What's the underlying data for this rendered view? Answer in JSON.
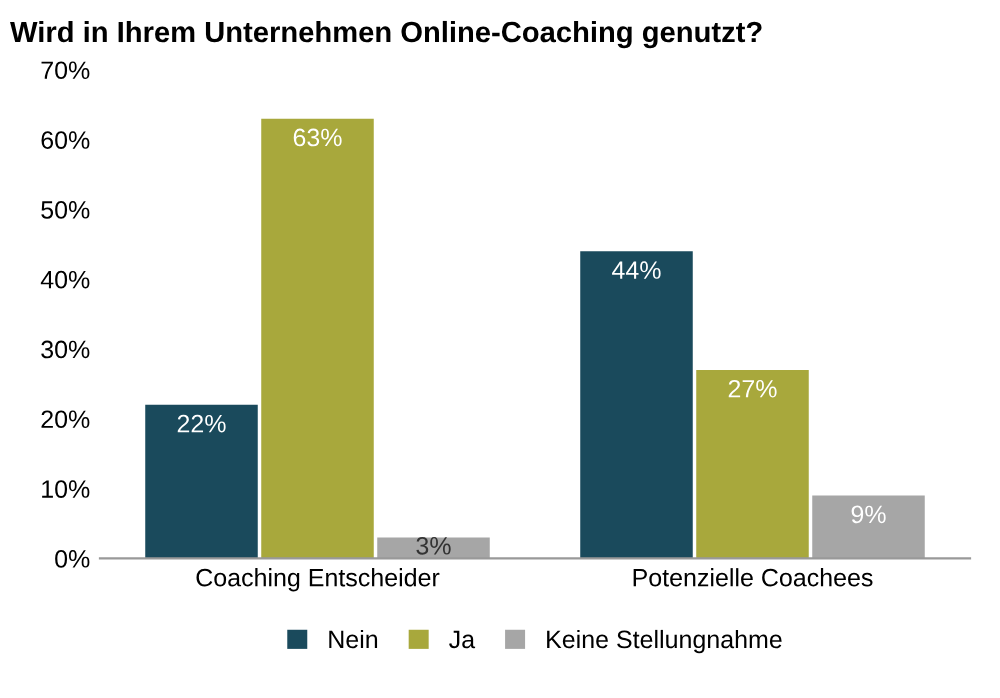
{
  "chart_data": {
    "type": "bar",
    "title": "Wird in Ihrem Unternehmen Online-Coaching genutzt?",
    "categories": [
      "Coaching Entscheider",
      "Potenzielle Coachees"
    ],
    "series": [
      {
        "name": "Nein",
        "color": "#1a4a5c",
        "values": [
          22,
          44
        ],
        "value_labels": [
          "22%",
          "44%"
        ]
      },
      {
        "name": "Ja",
        "color": "#a8a83c",
        "values": [
          63,
          27
        ],
        "value_labels": [
          "63%",
          "27%"
        ]
      },
      {
        "name": "Keine Stellungnahme",
        "color": "#a6a6a6",
        "values": [
          3,
          9
        ],
        "value_labels": [
          "3%",
          "9%"
        ]
      }
    ],
    "ylim": [
      0,
      70
    ],
    "yticks": [
      {
        "value": 0,
        "label": "0%"
      },
      {
        "value": 10,
        "label": "10%"
      },
      {
        "value": 20,
        "label": "20%"
      },
      {
        "value": 30,
        "label": "30%"
      },
      {
        "value": 40,
        "label": "40%"
      },
      {
        "value": 50,
        "label": "50%"
      },
      {
        "value": 60,
        "label": "60%"
      },
      {
        "value": 70,
        "label": "70%"
      }
    ],
    "legend": "bottom",
    "grid": false
  }
}
